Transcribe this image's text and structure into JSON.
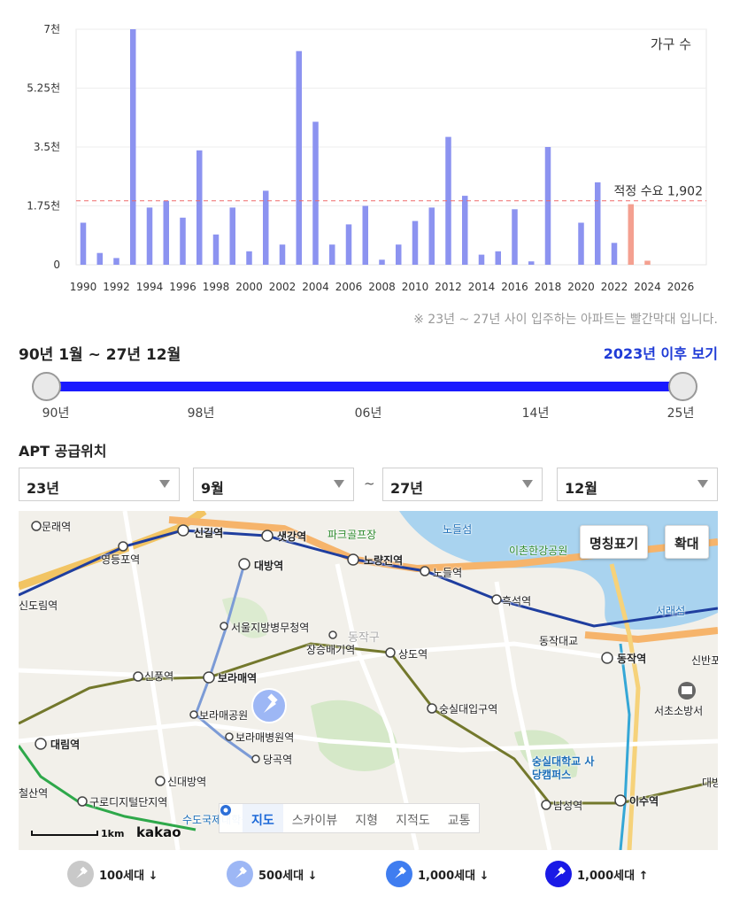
{
  "chart_data": {
    "type": "bar",
    "title": "가구 수",
    "x": [
      1990,
      1991,
      1992,
      1993,
      1994,
      1995,
      1996,
      1997,
      1998,
      1999,
      2000,
      2001,
      2002,
      2003,
      2004,
      2005,
      2006,
      2007,
      2008,
      2009,
      2010,
      2011,
      2012,
      2013,
      2014,
      2015,
      2016,
      2017,
      2018,
      2019,
      2020,
      2021,
      2022,
      2023,
      2024,
      2025,
      2026
    ],
    "values": [
      1250,
      350,
      200,
      7000,
      1700,
      1900,
      1400,
      3400,
      900,
      1700,
      400,
      2200,
      600,
      6350,
      4250,
      600,
      1200,
      1750,
      150,
      600,
      1300,
      1700,
      3800,
      2050,
      300,
      400,
      1650,
      100,
      3500,
      0,
      1250,
      2450,
      650,
      1800,
      120,
      0,
      0
    ],
    "highlight_from": 2023,
    "bar_color": "#8c93f0",
    "highlight_color": "#f4a090",
    "x_tick_labels": [
      "1990",
      "1992",
      "1994",
      "1996",
      "1998",
      "2000",
      "2002",
      "2004",
      "2006",
      "2008",
      "2010",
      "2012",
      "2014",
      "2016",
      "2018",
      "2020",
      "2022",
      "2024",
      "2026"
    ],
    "y_tick_labels": [
      "0",
      "1.75천",
      "3.5천",
      "5.25천",
      "7천"
    ],
    "ylim": [
      0,
      7000
    ],
    "reference_line": {
      "value": 1902,
      "label": "적정 수요 1,902",
      "color": "#ef6b6b"
    }
  },
  "note": "※ 23년 ~ 27년 사이 입주하는 아파트는 빨간막대 입니다.",
  "range": {
    "title": "90년 1월 ~ 27년 12월",
    "link": "2023년 이후 보기",
    "accent": "#1a1aff",
    "ticks": [
      "90년",
      "98년",
      "06년",
      "14년",
      "25년"
    ]
  },
  "apt": {
    "title": "APT 공급위치",
    "selects": [
      "23년",
      "9월",
      "27년",
      "12월"
    ],
    "tilde": "~"
  },
  "map": {
    "buttons": {
      "names": "명칭표기",
      "zoom": "확대"
    },
    "types": [
      "지도",
      "스카이뷰",
      "지형",
      "지적도",
      "교통"
    ],
    "scale": "1km",
    "logo": "kakao",
    "labels": [
      "문래역",
      "영등포역",
      "신길역",
      "샛강역",
      "파크골프장",
      "노들섬",
      "이촌한강공원",
      "대방역",
      "노량진역",
      "노들역",
      "신도림역",
      "흑석역",
      "서래섬",
      "서울지방병무청역",
      "동작구",
      "장승배기역",
      "상도역",
      "동작대교",
      "동작역",
      "신반포",
      "신풍역",
      "보라매역",
      "서초소방서",
      "보라매공원",
      "숭실대입구역",
      "보라매병원역",
      "대림역",
      "당곡역",
      "숭실대학교 사당캠퍼스",
      "신대방역",
      "구로디지털단지역",
      "남성역",
      "이수역",
      "수도국제대학원대학교",
      "철산역",
      "대방"
    ]
  },
  "legend": [
    {
      "label": "100세대 ↓",
      "color": "#c9c9c9"
    },
    {
      "label": "500세대 ↓",
      "color": "#9db7f5"
    },
    {
      "label": "1,000세대 ↓",
      "color": "#3f7df0"
    },
    {
      "label": "1,000세대 ↑",
      "color": "#1a1ae6"
    }
  ]
}
